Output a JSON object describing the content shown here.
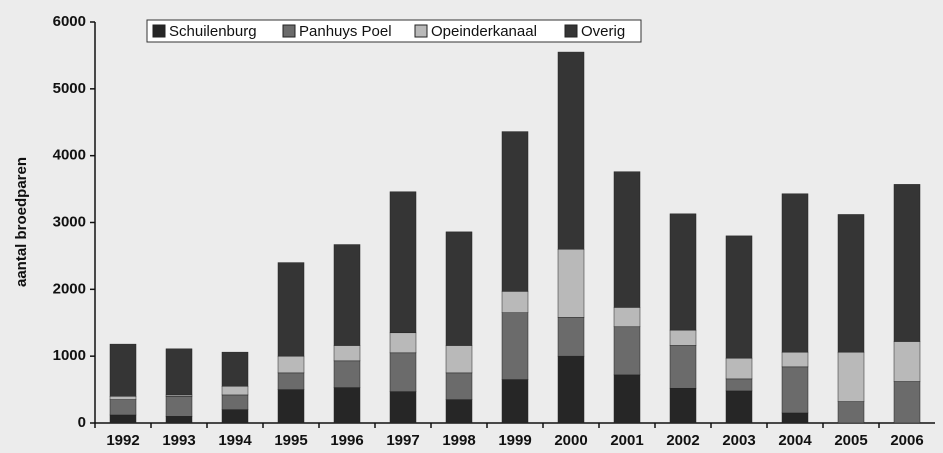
{
  "chart_data": {
    "type": "stacked-bar",
    "y_label": "aantal broedparen",
    "categories": [
      "1992",
      "1993",
      "1994",
      "1995",
      "1996",
      "1997",
      "1998",
      "1999",
      "2000",
      "2001",
      "2002",
      "2003",
      "2004",
      "2005",
      "2006"
    ],
    "series": [
      {
        "name": "Schuilenburg",
        "color": "#262626",
        "values": [
          120,
          100,
          200,
          500,
          530,
          470,
          350,
          650,
          1000,
          720,
          520,
          480,
          150,
          0,
          0
        ]
      },
      {
        "name": "Panhuys Poel",
        "color": "#6b6b6b",
        "values": [
          230,
          300,
          220,
          250,
          400,
          580,
          400,
          1000,
          580,
          720,
          640,
          180,
          690,
          320,
          620
        ]
      },
      {
        "name": "Opeinderkanaal",
        "color": "#b9b9b9",
        "values": [
          50,
          20,
          130,
          250,
          230,
          300,
          410,
          320,
          1020,
          290,
          230,
          310,
          220,
          740,
          600
        ]
      },
      {
        "name": "Overig",
        "color": "#353535",
        "values": [
          780,
          690,
          510,
          1400,
          1510,
          2110,
          1700,
          2390,
          2950,
          2030,
          1740,
          1830,
          2370,
          2060,
          2350
        ]
      }
    ],
    "ylim": [
      0,
      6000
    ],
    "yticks": [
      0,
      1000,
      2000,
      3000,
      4000,
      5000,
      6000
    ],
    "legend": "top"
  }
}
